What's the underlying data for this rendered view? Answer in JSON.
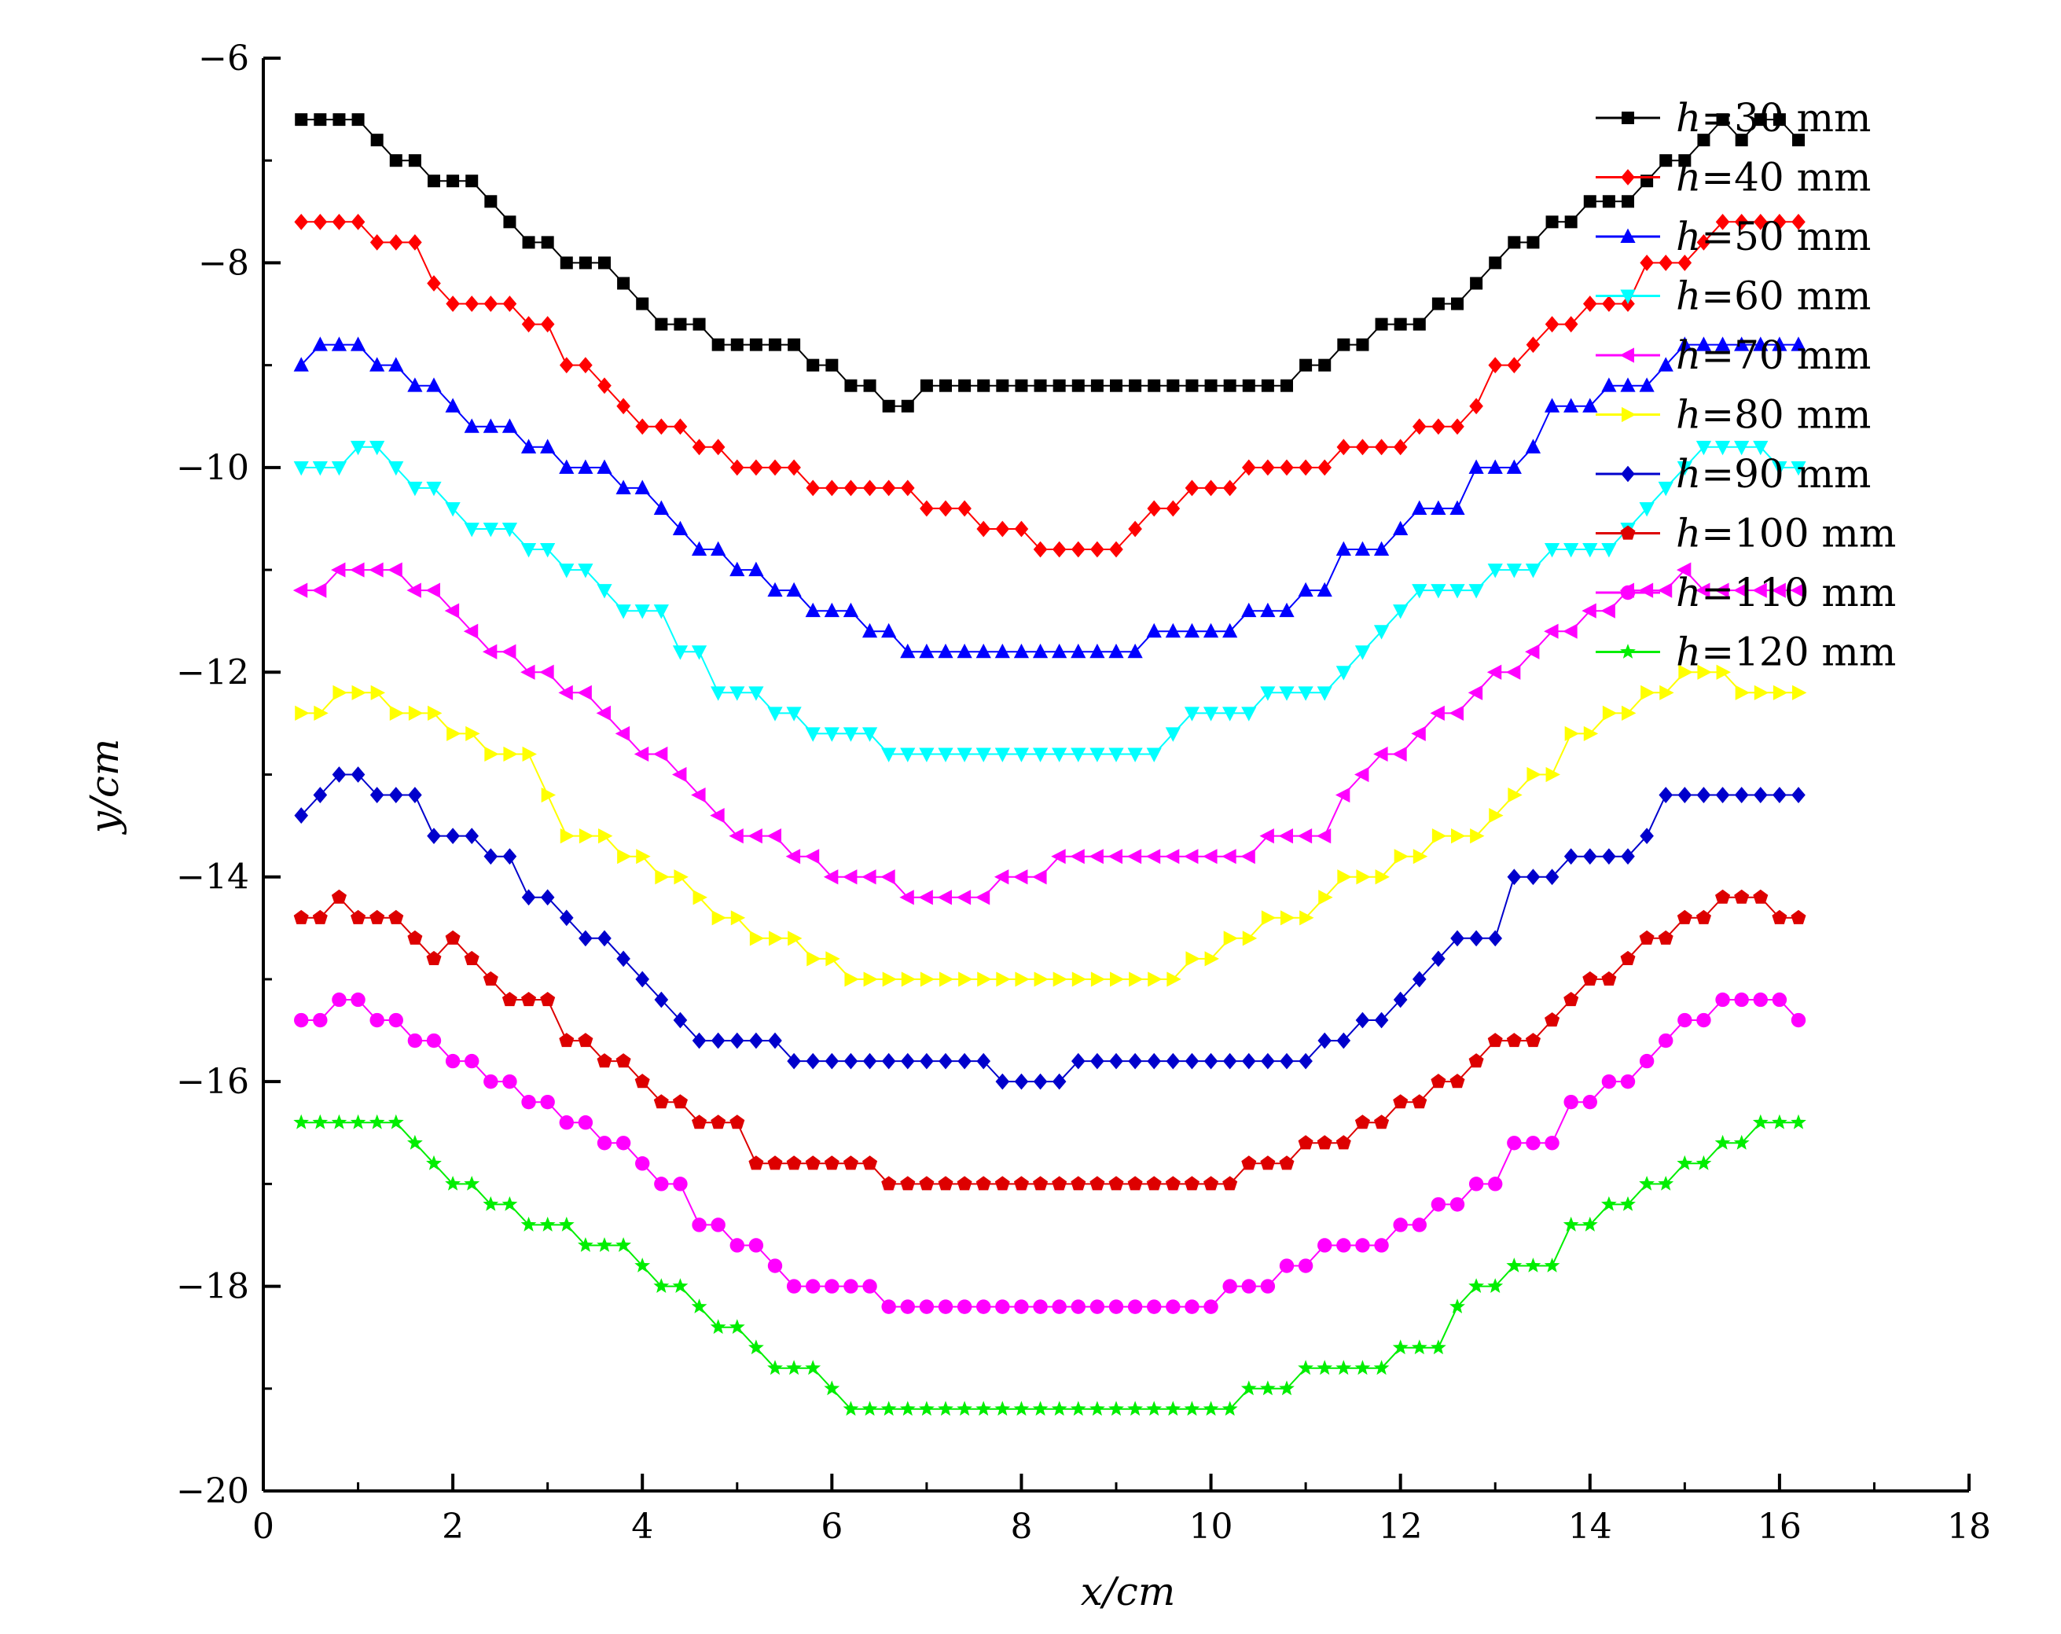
{
  "chart_data": {
    "type": "line",
    "title": "",
    "xlabel": "x/cm",
    "ylabel": "y/cm",
    "xlim": [
      0,
      18
    ],
    "ylim": [
      -20,
      -6
    ],
    "xticks": [
      0,
      2,
      4,
      6,
      8,
      10,
      12,
      14,
      16,
      18
    ],
    "yticks": [
      -6,
      -8,
      -10,
      -12,
      -14,
      -16,
      -18,
      -20
    ],
    "grid": false,
    "legend_position": "top-right",
    "x_start": 0.4,
    "x_step": 0.2,
    "series": [
      {
        "name": "h=30 mm",
        "color": "#000000",
        "marker": "square",
        "values": [
          -6.6,
          -6.6,
          -6.6,
          -6.6,
          -6.8,
          -7.0,
          -7.0,
          -7.2,
          -7.2,
          -7.2,
          -7.4,
          -7.6,
          -7.8,
          -7.8,
          -8.0,
          -8.0,
          -8.0,
          -8.2,
          -8.4,
          -8.6,
          -8.6,
          -8.6,
          -8.8,
          -8.8,
          -8.8,
          -8.8,
          -8.8,
          -9.0,
          -9.0,
          -9.2,
          -9.2,
          -9.4,
          -9.4,
          -9.2,
          -9.2,
          -9.2,
          -9.2,
          -9.2,
          -9.2,
          -9.2,
          -9.2,
          -9.2,
          -9.2,
          -9.2,
          -9.2,
          -9.2,
          -9.2,
          -9.2,
          -9.2,
          -9.2,
          -9.2,
          -9.2,
          -9.2,
          -9.0,
          -9.0,
          -8.8,
          -8.8,
          -8.6,
          -8.6,
          -8.6,
          -8.4,
          -8.4,
          -8.2,
          -8.0,
          -7.8,
          -7.8,
          -7.6,
          -7.6,
          -7.4,
          -7.4,
          -7.4,
          -7.2,
          -7.0,
          -7.0,
          -6.8,
          -6.6,
          -6.8,
          -6.6,
          -6.6,
          -6.8
        ]
      },
      {
        "name": "h=40 mm",
        "color": "#ff0000",
        "marker": "diamond",
        "values": [
          -7.6,
          -7.6,
          -7.6,
          -7.6,
          -7.8,
          -7.8,
          -7.8,
          -8.2,
          -8.4,
          -8.4,
          -8.4,
          -8.4,
          -8.6,
          -8.6,
          -9.0,
          -9.0,
          -9.2,
          -9.4,
          -9.6,
          -9.6,
          -9.6,
          -9.8,
          -9.8,
          -10.0,
          -10.0,
          -10.0,
          -10.0,
          -10.2,
          -10.2,
          -10.2,
          -10.2,
          -10.2,
          -10.2,
          -10.4,
          -10.4,
          -10.4,
          -10.6,
          -10.6,
          -10.6,
          -10.8,
          -10.8,
          -10.8,
          -10.8,
          -10.8,
          -10.6,
          -10.4,
          -10.4,
          -10.2,
          -10.2,
          -10.2,
          -10.0,
          -10.0,
          -10.0,
          -10.0,
          -10.0,
          -9.8,
          -9.8,
          -9.8,
          -9.8,
          -9.6,
          -9.6,
          -9.6,
          -9.4,
          -9.0,
          -9.0,
          -8.8,
          -8.6,
          -8.6,
          -8.4,
          -8.4,
          -8.4,
          -8.0,
          -8.0,
          -8.0,
          -7.8,
          -7.6,
          -7.6,
          -7.6,
          -7.6,
          -7.6
        ]
      },
      {
        "name": "h=50 mm",
        "color": "#0000ff",
        "marker": "triangle-up",
        "values": [
          -9.0,
          -8.8,
          -8.8,
          -8.8,
          -9.0,
          -9.0,
          -9.2,
          -9.2,
          -9.4,
          -9.6,
          -9.6,
          -9.6,
          -9.8,
          -9.8,
          -10.0,
          -10.0,
          -10.0,
          -10.2,
          -10.2,
          -10.4,
          -10.6,
          -10.8,
          -10.8,
          -11.0,
          -11.0,
          -11.2,
          -11.2,
          -11.4,
          -11.4,
          -11.4,
          -11.6,
          -11.6,
          -11.8,
          -11.8,
          -11.8,
          -11.8,
          -11.8,
          -11.8,
          -11.8,
          -11.8,
          -11.8,
          -11.8,
          -11.8,
          -11.8,
          -11.8,
          -11.6,
          -11.6,
          -11.6,
          -11.6,
          -11.6,
          -11.4,
          -11.4,
          -11.4,
          -11.2,
          -11.2,
          -10.8,
          -10.8,
          -10.8,
          -10.6,
          -10.4,
          -10.4,
          -10.4,
          -10.0,
          -10.0,
          -10.0,
          -9.8,
          -9.4,
          -9.4,
          -9.4,
          -9.2,
          -9.2,
          -9.2,
          -9.0,
          -8.8,
          -8.8,
          -8.8,
          -8.8,
          -8.8,
          -8.8,
          -8.8
        ]
      },
      {
        "name": "h=60 mm",
        "color": "#00ffff",
        "marker": "triangle-down",
        "values": [
          -10.0,
          -10.0,
          -10.0,
          -9.8,
          -9.8,
          -10.0,
          -10.2,
          -10.2,
          -10.4,
          -10.6,
          -10.6,
          -10.6,
          -10.8,
          -10.8,
          -11.0,
          -11.0,
          -11.2,
          -11.4,
          -11.4,
          -11.4,
          -11.8,
          -11.8,
          -12.2,
          -12.2,
          -12.2,
          -12.4,
          -12.4,
          -12.6,
          -12.6,
          -12.6,
          -12.6,
          -12.8,
          -12.8,
          -12.8,
          -12.8,
          -12.8,
          -12.8,
          -12.8,
          -12.8,
          -12.8,
          -12.8,
          -12.8,
          -12.8,
          -12.8,
          -12.8,
          -12.8,
          -12.6,
          -12.4,
          -12.4,
          -12.4,
          -12.4,
          -12.2,
          -12.2,
          -12.2,
          -12.2,
          -12.0,
          -11.8,
          -11.6,
          -11.4,
          -11.2,
          -11.2,
          -11.2,
          -11.2,
          -11.0,
          -11.0,
          -11.0,
          -10.8,
          -10.8,
          -10.8,
          -10.8,
          -10.6,
          -10.4,
          -10.2,
          -10.0,
          -9.8,
          -9.8,
          -9.8,
          -9.8,
          -10.0,
          -10.0
        ]
      },
      {
        "name": "h=70 mm",
        "color": "#ff00ff",
        "marker": "triangle-left",
        "values": [
          -11.2,
          -11.2,
          -11.0,
          -11.0,
          -11.0,
          -11.0,
          -11.2,
          -11.2,
          -11.4,
          -11.6,
          -11.8,
          -11.8,
          -12.0,
          -12.0,
          -12.2,
          -12.2,
          -12.4,
          -12.6,
          -12.8,
          -12.8,
          -13.0,
          -13.2,
          -13.4,
          -13.6,
          -13.6,
          -13.6,
          -13.8,
          -13.8,
          -14.0,
          -14.0,
          -14.0,
          -14.0,
          -14.2,
          -14.2,
          -14.2,
          -14.2,
          -14.2,
          -14.0,
          -14.0,
          -14.0,
          -13.8,
          -13.8,
          -13.8,
          -13.8,
          -13.8,
          -13.8,
          -13.8,
          -13.8,
          -13.8,
          -13.8,
          -13.8,
          -13.6,
          -13.6,
          -13.6,
          -13.6,
          -13.2,
          -13.0,
          -12.8,
          -12.8,
          -12.6,
          -12.4,
          -12.4,
          -12.2,
          -12.0,
          -12.0,
          -11.8,
          -11.6,
          -11.6,
          -11.4,
          -11.4,
          -11.2,
          -11.2,
          -11.2,
          -11.0,
          -11.2,
          -11.2,
          -11.2,
          -11.2,
          -11.2,
          -11.2
        ]
      },
      {
        "name": "h=80 mm",
        "color": "#ffff00",
        "marker": "triangle-right",
        "values": [
          -12.4,
          -12.4,
          -12.2,
          -12.2,
          -12.2,
          -12.4,
          -12.4,
          -12.4,
          -12.6,
          -12.6,
          -12.8,
          -12.8,
          -12.8,
          -13.2,
          -13.6,
          -13.6,
          -13.6,
          -13.8,
          -13.8,
          -14.0,
          -14.0,
          -14.2,
          -14.4,
          -14.4,
          -14.6,
          -14.6,
          -14.6,
          -14.8,
          -14.8,
          -15.0,
          -15.0,
          -15.0,
          -15.0,
          -15.0,
          -15.0,
          -15.0,
          -15.0,
          -15.0,
          -15.0,
          -15.0,
          -15.0,
          -15.0,
          -15.0,
          -15.0,
          -15.0,
          -15.0,
          -15.0,
          -14.8,
          -14.8,
          -14.6,
          -14.6,
          -14.4,
          -14.4,
          -14.4,
          -14.2,
          -14.0,
          -14.0,
          -14.0,
          -13.8,
          -13.8,
          -13.6,
          -13.6,
          -13.6,
          -13.4,
          -13.2,
          -13.0,
          -13.0,
          -12.6,
          -12.6,
          -12.4,
          -12.4,
          -12.2,
          -12.2,
          -12.0,
          -12.0,
          -12.0,
          -12.2,
          -12.2,
          -12.2,
          -12.2
        ]
      },
      {
        "name": "h=90 mm",
        "color": "#0000cc",
        "marker": "diamond",
        "values": [
          -13.4,
          -13.2,
          -13.0,
          -13.0,
          -13.2,
          -13.2,
          -13.2,
          -13.6,
          -13.6,
          -13.6,
          -13.8,
          -13.8,
          -14.2,
          -14.2,
          -14.4,
          -14.6,
          -14.6,
          -14.8,
          -15.0,
          -15.2,
          -15.4,
          -15.6,
          -15.6,
          -15.6,
          -15.6,
          -15.6,
          -15.8,
          -15.8,
          -15.8,
          -15.8,
          -15.8,
          -15.8,
          -15.8,
          -15.8,
          -15.8,
          -15.8,
          -15.8,
          -16.0,
          -16.0,
          -16.0,
          -16.0,
          -15.8,
          -15.8,
          -15.8,
          -15.8,
          -15.8,
          -15.8,
          -15.8,
          -15.8,
          -15.8,
          -15.8,
          -15.8,
          -15.8,
          -15.8,
          -15.6,
          -15.6,
          -15.4,
          -15.4,
          -15.2,
          -15.0,
          -14.8,
          -14.6,
          -14.6,
          -14.6,
          -14.0,
          -14.0,
          -14.0,
          -13.8,
          -13.8,
          -13.8,
          -13.8,
          -13.6,
          -13.2,
          -13.2,
          -13.2,
          -13.2,
          -13.2,
          -13.2,
          -13.2,
          -13.2
        ]
      },
      {
        "name": "h=100 mm",
        "color": "#dd0000",
        "marker": "pentagon",
        "values": [
          -14.4,
          -14.4,
          -14.2,
          -14.4,
          -14.4,
          -14.4,
          -14.6,
          -14.8,
          -14.6,
          -14.8,
          -15.0,
          -15.2,
          -15.2,
          -15.2,
          -15.6,
          -15.6,
          -15.8,
          -15.8,
          -16.0,
          -16.2,
          -16.2,
          -16.4,
          -16.4,
          -16.4,
          -16.8,
          -16.8,
          -16.8,
          -16.8,
          -16.8,
          -16.8,
          -16.8,
          -17.0,
          -17.0,
          -17.0,
          -17.0,
          -17.0,
          -17.0,
          -17.0,
          -17.0,
          -17.0,
          -17.0,
          -17.0,
          -17.0,
          -17.0,
          -17.0,
          -17.0,
          -17.0,
          -17.0,
          -17.0,
          -17.0,
          -16.8,
          -16.8,
          -16.8,
          -16.6,
          -16.6,
          -16.6,
          -16.4,
          -16.4,
          -16.2,
          -16.2,
          -16.0,
          -16.0,
          -15.8,
          -15.6,
          -15.6,
          -15.6,
          -15.4,
          -15.2,
          -15.0,
          -15.0,
          -14.8,
          -14.6,
          -14.6,
          -14.4,
          -14.4,
          -14.2,
          -14.2,
          -14.2,
          -14.4,
          -14.4
        ]
      },
      {
        "name": "h=110 mm",
        "color": "#ff00ff",
        "marker": "circle",
        "values": [
          -15.4,
          -15.4,
          -15.2,
          -15.2,
          -15.4,
          -15.4,
          -15.6,
          -15.6,
          -15.8,
          -15.8,
          -16.0,
          -16.0,
          -16.2,
          -16.2,
          -16.4,
          -16.4,
          -16.6,
          -16.6,
          -16.8,
          -17.0,
          -17.0,
          -17.4,
          -17.4,
          -17.6,
          -17.6,
          -17.8,
          -18.0,
          -18.0,
          -18.0,
          -18.0,
          -18.0,
          -18.2,
          -18.2,
          -18.2,
          -18.2,
          -18.2,
          -18.2,
          -18.2,
          -18.2,
          -18.2,
          -18.2,
          -18.2,
          -18.2,
          -18.2,
          -18.2,
          -18.2,
          -18.2,
          -18.2,
          -18.2,
          -18.0,
          -18.0,
          -18.0,
          -17.8,
          -17.8,
          -17.6,
          -17.6,
          -17.6,
          -17.6,
          -17.4,
          -17.4,
          -17.2,
          -17.2,
          -17.0,
          -17.0,
          -16.6,
          -16.6,
          -16.6,
          -16.2,
          -16.2,
          -16.0,
          -16.0,
          -15.8,
          -15.6,
          -15.4,
          -15.4,
          -15.2,
          -15.2,
          -15.2,
          -15.2,
          -15.4
        ]
      },
      {
        "name": "h=120 mm",
        "color": "#00ee00",
        "marker": "star",
        "values": [
          -16.4,
          -16.4,
          -16.4,
          -16.4,
          -16.4,
          -16.4,
          -16.6,
          -16.8,
          -17.0,
          -17.0,
          -17.2,
          -17.2,
          -17.4,
          -17.4,
          -17.4,
          -17.6,
          -17.6,
          -17.6,
          -17.8,
          -18.0,
          -18.0,
          -18.2,
          -18.4,
          -18.4,
          -18.6,
          -18.8,
          -18.8,
          -18.8,
          -19.0,
          -19.2,
          -19.2,
          -19.2,
          -19.2,
          -19.2,
          -19.2,
          -19.2,
          -19.2,
          -19.2,
          -19.2,
          -19.2,
          -19.2,
          -19.2,
          -19.2,
          -19.2,
          -19.2,
          -19.2,
          -19.2,
          -19.2,
          -19.2,
          -19.2,
          -19.0,
          -19.0,
          -19.0,
          -18.8,
          -18.8,
          -18.8,
          -18.8,
          -18.8,
          -18.6,
          -18.6,
          -18.6,
          -18.2,
          -18.0,
          -18.0,
          -17.8,
          -17.8,
          -17.8,
          -17.4,
          -17.4,
          -17.2,
          -17.2,
          -17.0,
          -17.0,
          -16.8,
          -16.8,
          -16.6,
          -16.6,
          -16.4,
          -16.4,
          -16.4
        ]
      }
    ]
  }
}
